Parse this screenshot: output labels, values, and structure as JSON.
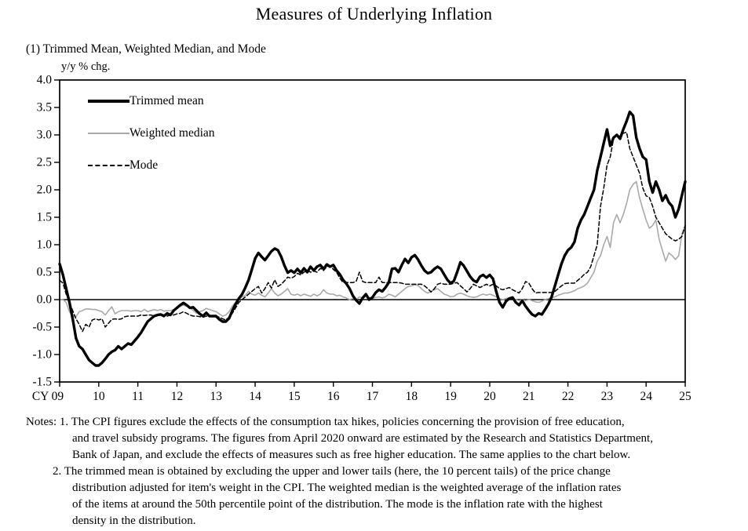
{
  "title": "Measures of Underlying Inflation",
  "subtitle": "(1) Trimmed Mean, Weighted Median, and Mode",
  "unit_label": "y/y % chg.",
  "legend": {
    "items": [
      {
        "label": "Trimmed mean",
        "style": "solid-thick",
        "color": "#000000"
      },
      {
        "label": "Weighted median",
        "style": "solid-thin",
        "color": "#a9a9a9"
      },
      {
        "label": "Mode",
        "style": "dashed",
        "color": "#000000"
      }
    ]
  },
  "notes": {
    "lines": [
      {
        "indent": "notes",
        "text": "Notes: 1. The CPI figures exclude the effects of the consumption tax hikes, policies concerning the provision of free education,"
      },
      {
        "indent": "cont",
        "text": "and travel subsidy programs. The figures from April 2020 onward are estimated by the Research and Statistics Department,"
      },
      {
        "indent": "cont",
        "text": "Bank of Japan, and exclude the effects of measures such as free higher education. The same applies to the chart below."
      },
      {
        "indent": "num",
        "text": "2. The trimmed mean is obtained by excluding the upper and lower tails (here, the 10 percent tails) of the price change"
      },
      {
        "indent": "cont",
        "text": "distribution adjusted for item's weight in the CPI. The weighted median is the weighted average of the inflation rates"
      },
      {
        "indent": "cont",
        "text": "of the items at around the 50th percentile point of the distribution. The mode is the inflation rate with the highest"
      },
      {
        "indent": "cont",
        "text": "density in the distribution."
      }
    ]
  },
  "chart_data": {
    "type": "line",
    "x_unit": "monthly",
    "x_start": "2009-01",
    "x_end": "2025-01",
    "x_tick_labels": [
      "CY 09",
      "10",
      "11",
      "12",
      "13",
      "14",
      "15",
      "16",
      "17",
      "18",
      "19",
      "20",
      "21",
      "22",
      "23",
      "24",
      "25"
    ],
    "y_tick_labels": [
      "4.0",
      "3.5",
      "3.0",
      "2.5",
      "2.0",
      "1.5",
      "1.0",
      "0.5",
      "0.0",
      "-0.5",
      "-1.0",
      "-1.5"
    ],
    "y_ticks": [
      4.0,
      3.5,
      3.0,
      2.5,
      2.0,
      1.5,
      1.0,
      0.5,
      0.0,
      -0.5,
      -1.0,
      -1.5
    ],
    "ylim": [
      -1.5,
      4.0
    ],
    "zero_line": true,
    "grid": false,
    "legend_position": "top-left-inside",
    "draw_order": [
      1,
      2,
      0
    ],
    "series": [
      {
        "name": "Trimmed mean",
        "color": "#000000",
        "width": 3.4,
        "dash": null,
        "values": [
          0.65,
          0.45,
          0.2,
          -0.05,
          -0.35,
          -0.7,
          -0.85,
          -0.9,
          -1.0,
          -1.1,
          -1.15,
          -1.2,
          -1.2,
          -1.15,
          -1.08,
          -1.0,
          -0.95,
          -0.92,
          -0.85,
          -0.9,
          -0.85,
          -0.8,
          -0.82,
          -0.75,
          -0.68,
          -0.6,
          -0.5,
          -0.4,
          -0.35,
          -0.3,
          -0.28,
          -0.27,
          -0.3,
          -0.25,
          -0.28,
          -0.2,
          -0.15,
          -0.1,
          -0.06,
          -0.1,
          -0.15,
          -0.14,
          -0.2,
          -0.26,
          -0.3,
          -0.24,
          -0.3,
          -0.3,
          -0.3,
          -0.36,
          -0.4,
          -0.4,
          -0.34,
          -0.2,
          -0.08,
          0.02,
          0.1,
          0.22,
          0.36,
          0.55,
          0.75,
          0.85,
          0.78,
          0.72,
          0.8,
          0.88,
          0.93,
          0.9,
          0.78,
          0.62,
          0.49,
          0.53,
          0.49,
          0.56,
          0.49,
          0.57,
          0.5,
          0.6,
          0.53,
          0.6,
          0.63,
          0.56,
          0.64,
          0.6,
          0.63,
          0.53,
          0.46,
          0.36,
          0.29,
          0.2,
          0.07,
          -0.01,
          -0.07,
          0.03,
          0.1,
          0.0,
          0.04,
          0.13,
          0.18,
          0.15,
          0.22,
          0.31,
          0.56,
          0.57,
          0.5,
          0.63,
          0.74,
          0.67,
          0.77,
          0.81,
          0.73,
          0.62,
          0.53,
          0.48,
          0.5,
          0.56,
          0.6,
          0.56,
          0.46,
          0.36,
          0.3,
          0.34,
          0.5,
          0.68,
          0.62,
          0.52,
          0.42,
          0.35,
          0.32,
          0.42,
          0.45,
          0.4,
          0.45,
          0.38,
          0.15,
          -0.05,
          -0.14,
          -0.03,
          0.02,
          0.04,
          -0.05,
          -0.1,
          -0.02,
          -0.12,
          -0.2,
          -0.27,
          -0.3,
          -0.25,
          -0.27,
          -0.18,
          -0.08,
          0.05,
          0.25,
          0.45,
          0.65,
          0.8,
          0.9,
          0.95,
          1.05,
          1.3,
          1.45,
          1.55,
          1.7,
          1.85,
          2.0,
          2.35,
          2.6,
          2.85,
          3.1,
          2.8,
          2.95,
          3.0,
          2.93,
          3.1,
          3.25,
          3.42,
          3.35,
          2.95,
          2.75,
          2.6,
          2.55,
          2.15,
          1.95,
          2.15,
          2.0,
          1.8,
          1.9,
          1.77,
          1.7,
          1.5,
          1.65,
          1.9,
          2.15
        ]
      },
      {
        "name": "Weighted median",
        "color": "#a9a9a9",
        "width": 1.6,
        "dash": null,
        "values": [
          0.0,
          0.0,
          -0.05,
          -0.22,
          -0.3,
          -0.31,
          -0.22,
          -0.2,
          -0.17,
          -0.17,
          -0.18,
          -0.18,
          -0.2,
          -0.22,
          -0.28,
          -0.2,
          -0.13,
          -0.26,
          -0.22,
          -0.2,
          -0.2,
          -0.2,
          -0.21,
          -0.2,
          -0.2,
          -0.22,
          -0.18,
          -0.22,
          -0.2,
          -0.18,
          -0.2,
          -0.18,
          -0.21,
          -0.2,
          -0.2,
          -0.18,
          -0.15,
          -0.12,
          -0.1,
          -0.12,
          -0.15,
          -0.2,
          -0.25,
          -0.22,
          -0.2,
          -0.16,
          -0.18,
          -0.2,
          -0.22,
          -0.26,
          -0.3,
          -0.28,
          -0.22,
          -0.12,
          -0.05,
          0.02,
          0.05,
          0.08,
          0.15,
          0.1,
          0.08,
          0.12,
          0.08,
          0.05,
          0.12,
          0.2,
          0.12,
          0.07,
          0.1,
          0.15,
          0.2,
          0.1,
          0.08,
          0.1,
          0.07,
          0.1,
          0.08,
          0.06,
          0.1,
          0.07,
          0.1,
          0.18,
          0.12,
          0.1,
          0.1,
          0.07,
          0.08,
          0.05,
          0.03,
          0.0,
          0.02,
          0.0,
          0.05,
          0.02,
          0.06,
          0.04,
          0.02,
          0.04,
          0.05,
          0.03,
          0.05,
          0.1,
          0.08,
          0.05,
          0.1,
          0.15,
          0.2,
          0.24,
          0.25,
          0.27,
          0.26,
          0.2,
          0.15,
          0.12,
          0.15,
          0.18,
          0.2,
          0.15,
          0.1,
          0.08,
          0.05,
          0.06,
          0.1,
          0.12,
          0.1,
          0.07,
          0.05,
          0.04,
          0.05,
          0.08,
          0.1,
          0.08,
          0.1,
          0.08,
          0.05,
          0.02,
          0.0,
          0.02,
          0.03,
          0.02,
          0.0,
          -0.02,
          0.0,
          -0.02,
          0.0,
          -0.02,
          -0.04,
          -0.05,
          -0.03,
          0.0,
          0.02,
          0.03,
          0.05,
          0.08,
          0.1,
          0.12,
          0.12,
          0.14,
          0.16,
          0.2,
          0.22,
          0.25,
          0.3,
          0.4,
          0.5,
          0.7,
          0.8,
          1.0,
          1.15,
          0.95,
          1.4,
          1.55,
          1.4,
          1.55,
          1.75,
          2.0,
          2.1,
          2.15,
          1.85,
          1.65,
          1.45,
          1.3,
          1.35,
          1.45,
          1.1,
          0.9,
          0.7,
          0.85,
          0.8,
          0.73,
          0.8,
          1.2,
          1.35
        ]
      },
      {
        "name": "Mode",
        "color": "#000000",
        "width": 1.5,
        "dash": "5,3",
        "values": [
          0.35,
          0.3,
          0.1,
          -0.05,
          -0.2,
          -0.35,
          -0.45,
          -0.58,
          -0.45,
          -0.5,
          -0.37,
          -0.35,
          -0.37,
          -0.35,
          -0.5,
          -0.43,
          -0.36,
          -0.35,
          -0.36,
          -0.35,
          -0.31,
          -0.3,
          -0.3,
          -0.3,
          -0.3,
          -0.28,
          -0.29,
          -0.28,
          -0.28,
          -0.3,
          -0.28,
          -0.26,
          -0.28,
          -0.3,
          -0.28,
          -0.28,
          -0.26,
          -0.25,
          -0.22,
          -0.25,
          -0.28,
          -0.3,
          -0.3,
          -0.31,
          -0.32,
          -0.3,
          -0.31,
          -0.3,
          -0.3,
          -0.32,
          -0.35,
          -0.37,
          -0.32,
          -0.25,
          -0.15,
          -0.05,
          0.0,
          0.05,
          0.1,
          0.15,
          0.2,
          0.24,
          0.12,
          0.2,
          0.31,
          0.21,
          0.36,
          0.24,
          0.28,
          0.34,
          0.41,
          0.39,
          0.42,
          0.48,
          0.45,
          0.5,
          0.53,
          0.5,
          0.52,
          0.5,
          0.57,
          0.53,
          0.6,
          0.62,
          0.55,
          0.5,
          0.39,
          0.31,
          0.31,
          0.31,
          0.31,
          0.33,
          0.5,
          0.33,
          0.31,
          0.31,
          0.31,
          0.31,
          0.41,
          0.31,
          0.31,
          0.31,
          0.31,
          0.31,
          0.31,
          0.3,
          0.28,
          0.28,
          0.28,
          0.28,
          0.28,
          0.28,
          0.25,
          0.2,
          0.14,
          0.2,
          0.28,
          0.3,
          0.28,
          0.28,
          0.28,
          0.3,
          0.31,
          0.25,
          0.2,
          0.14,
          0.2,
          0.28,
          0.25,
          0.22,
          0.25,
          0.28,
          0.25,
          0.28,
          0.25,
          0.2,
          0.18,
          0.2,
          0.22,
          0.18,
          0.15,
          0.12,
          0.2,
          0.33,
          0.3,
          0.2,
          0.12,
          0.13,
          0.13,
          0.13,
          0.13,
          0.13,
          0.15,
          0.2,
          0.25,
          0.29,
          0.3,
          0.3,
          0.3,
          0.35,
          0.4,
          0.46,
          0.5,
          0.6,
          0.8,
          1.0,
          1.7,
          2.03,
          2.45,
          2.6,
          2.93,
          3.0,
          2.97,
          3.03,
          3.05,
          2.75,
          2.6,
          2.45,
          2.3,
          2.03,
          1.89,
          1.86,
          1.7,
          1.5,
          1.4,
          1.3,
          1.2,
          1.15,
          1.1,
          1.07,
          1.1,
          1.15,
          1.35
        ]
      }
    ]
  },
  "colors": {
    "foreground": "#000000",
    "median_gray": "#a9a9a9",
    "background": "#ffffff"
  }
}
